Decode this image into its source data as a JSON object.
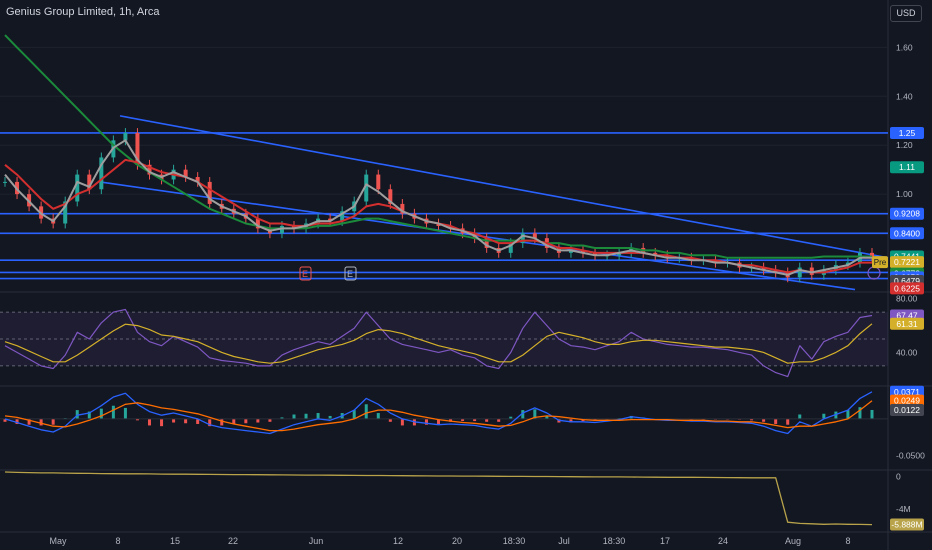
{
  "header": {
    "title": "Genius Group Limited, 1h, Arca",
    "currency": "USD"
  },
  "colors": {
    "background": "#131722",
    "grid": "#1e222d",
    "text": "#b2b5be",
    "channel": "#2962ff",
    "ma_slow": "#1b8a3b",
    "ma_mid": "#d32f2f",
    "ma_fast": "#9e9e9e",
    "up": "#26a69a",
    "down": "#ef5350",
    "rsi": "#7e57c2",
    "rsi_ma": "#d4b02a",
    "macd": "#2962ff",
    "signal": "#ff6d00",
    "volume_line": "#b8a34a"
  },
  "chart_data": [
    {
      "type": "line",
      "panel": "price",
      "yticks": [
        1.6,
        1.4,
        1.2,
        1.0
      ],
      "ylim": [
        0.6,
        1.72
      ],
      "xlabels": [
        "May",
        "8",
        "15",
        "22",
        "Jun",
        "12",
        "20",
        "18:30",
        "Jul",
        "18:30",
        "17",
        "24",
        "Aug",
        "8"
      ],
      "horizontal_levels": [
        1.25,
        0.92,
        0.84,
        0.73,
        0.68,
        0.655
      ],
      "price_tags": [
        {
          "label": "1.25",
          "value": 1.25,
          "color": "#2962ff"
        },
        {
          "label": "1.11",
          "value": 1.11,
          "color": "#089981"
        },
        {
          "label": "0.9208",
          "value": 0.92,
          "color": "#2962ff"
        },
        {
          "label": "0.8400",
          "value": 0.84,
          "color": "#2962ff"
        },
        {
          "label": "0.7441",
          "value": 0.745,
          "color": "#089981"
        },
        {
          "label": "0.7221",
          "value": 0.722,
          "color": "#d4b02a",
          "prefix": "Pre"
        },
        {
          "label": "0.6772",
          "value": 0.675,
          "color": "#1b8a3b"
        },
        {
          "label": "0.6652",
          "value": 0.66,
          "color": "#2962ff"
        },
        {
          "label": "0.6479",
          "value": 0.645,
          "color": "#434651"
        },
        {
          "label": "0.6225",
          "value": 0.615,
          "color": "#d32f2f"
        }
      ],
      "event_markers": [
        "E",
        "E"
      ],
      "series": [
        {
          "name": "price",
          "values": [
            1.05,
            1.0,
            0.95,
            0.9,
            0.88,
            0.97,
            1.08,
            1.02,
            1.15,
            1.22,
            1.25,
            1.12,
            1.08,
            1.06,
            1.1,
            1.07,
            1.05,
            0.96,
            0.94,
            0.92,
            0.9,
            0.86,
            0.84,
            0.87,
            0.86,
            0.88,
            0.9,
            0.89,
            0.93,
            0.97,
            1.08,
            1.02,
            0.96,
            0.92,
            0.9,
            0.88,
            0.87,
            0.86,
            0.84,
            0.82,
            0.78,
            0.76,
            0.8,
            0.84,
            0.82,
            0.78,
            0.76,
            0.77,
            0.76,
            0.75,
            0.75,
            0.76,
            0.78,
            0.76,
            0.75,
            0.74,
            0.74,
            0.73,
            0.73,
            0.72,
            0.72,
            0.7,
            0.7,
            0.69,
            0.68,
            0.66,
            0.7,
            0.67,
            0.69,
            0.71,
            0.72,
            0.76,
            0.745
          ]
        },
        {
          "name": "ma_slow",
          "values": [
            1.65,
            1.6,
            1.55,
            1.5,
            1.45,
            1.4,
            1.35,
            1.3,
            1.25,
            1.2,
            1.16,
            1.12,
            1.09,
            1.06,
            1.03,
            1.0,
            0.97,
            0.94,
            0.92,
            0.9,
            0.88,
            0.87,
            0.86,
            0.86,
            0.86,
            0.86,
            0.87,
            0.87,
            0.88,
            0.89,
            0.9,
            0.9,
            0.89,
            0.88,
            0.87,
            0.86,
            0.85,
            0.84,
            0.83,
            0.82,
            0.81,
            0.81,
            0.81,
            0.81,
            0.81,
            0.8,
            0.8,
            0.79,
            0.79,
            0.78,
            0.78,
            0.78,
            0.78,
            0.77,
            0.77,
            0.76,
            0.76,
            0.75,
            0.75,
            0.75,
            0.74,
            0.74,
            0.74,
            0.74,
            0.74,
            0.74,
            0.74,
            0.74,
            0.745,
            0.745,
            0.745,
            0.745,
            0.745
          ]
        },
        {
          "name": "ma_mid",
          "values": [
            1.12,
            1.08,
            1.03,
            0.98,
            0.94,
            0.96,
            1.0,
            1.02,
            1.06,
            1.1,
            1.14,
            1.13,
            1.11,
            1.09,
            1.08,
            1.07,
            1.05,
            1.02,
            0.99,
            0.96,
            0.93,
            0.9,
            0.88,
            0.88,
            0.87,
            0.87,
            0.88,
            0.88,
            0.89,
            0.91,
            0.95,
            0.96,
            0.95,
            0.93,
            0.91,
            0.89,
            0.88,
            0.87,
            0.85,
            0.84,
            0.82,
            0.8,
            0.8,
            0.81,
            0.81,
            0.8,
            0.78,
            0.78,
            0.77,
            0.76,
            0.76,
            0.76,
            0.76,
            0.76,
            0.75,
            0.75,
            0.74,
            0.74,
            0.73,
            0.73,
            0.72,
            0.71,
            0.71,
            0.7,
            0.69,
            0.68,
            0.69,
            0.68,
            0.68,
            0.69,
            0.7,
            0.72,
            0.72
          ]
        },
        {
          "name": "ma_fast",
          "values": [
            1.08,
            1.02,
            0.97,
            0.92,
            0.89,
            0.95,
            1.05,
            1.03,
            1.12,
            1.19,
            1.22,
            1.14,
            1.09,
            1.07,
            1.09,
            1.07,
            1.05,
            0.98,
            0.95,
            0.93,
            0.91,
            0.87,
            0.85,
            0.86,
            0.86,
            0.87,
            0.89,
            0.89,
            0.92,
            0.95,
            1.04,
            1.01,
            0.97,
            0.93,
            0.91,
            0.89,
            0.88,
            0.86,
            0.85,
            0.83,
            0.79,
            0.77,
            0.79,
            0.83,
            0.82,
            0.79,
            0.77,
            0.77,
            0.76,
            0.75,
            0.75,
            0.76,
            0.77,
            0.76,
            0.75,
            0.74,
            0.74,
            0.73,
            0.73,
            0.72,
            0.72,
            0.71,
            0.7,
            0.69,
            0.68,
            0.67,
            0.69,
            0.68,
            0.69,
            0.7,
            0.71,
            0.74,
            0.74
          ]
        }
      ]
    },
    {
      "type": "line",
      "panel": "rsi",
      "ylim": [
        15,
        85
      ],
      "yticks": [
        80.0,
        40.0
      ],
      "bands": [
        70,
        50,
        30
      ],
      "tags": [
        {
          "label": "67.47",
          "value": 67.47,
          "color": "#7e57c2"
        },
        {
          "label": "61.31",
          "value": 61.31,
          "color": "#d4b02a"
        }
      ],
      "series": [
        {
          "name": "rsi",
          "values": [
            45,
            40,
            35,
            30,
            28,
            38,
            55,
            50,
            62,
            70,
            72,
            55,
            48,
            45,
            52,
            48,
            44,
            36,
            34,
            33,
            32,
            30,
            30,
            38,
            42,
            45,
            48,
            46,
            52,
            58,
            70,
            60,
            50,
            46,
            44,
            42,
            40,
            42,
            38,
            36,
            30,
            28,
            40,
            58,
            70,
            60,
            50,
            45,
            44,
            42,
            45,
            48,
            55,
            50,
            48,
            46,
            45,
            44,
            44,
            43,
            42,
            40,
            38,
            30,
            25,
            22,
            45,
            35,
            48,
            52,
            55,
            66,
            67.47
          ]
        },
        {
          "name": "rsi_ma",
          "values": [
            48,
            45,
            41,
            37,
            33,
            33,
            38,
            44,
            50,
            56,
            61,
            60,
            57,
            53,
            52,
            50,
            48,
            44,
            40,
            37,
            35,
            33,
            32,
            33,
            36,
            39,
            42,
            44,
            46,
            49,
            54,
            57,
            56,
            54,
            51,
            48,
            45,
            43,
            41,
            39,
            36,
            33,
            33,
            38,
            45,
            52,
            55,
            53,
            51,
            48,
            46,
            46,
            48,
            49,
            49,
            48,
            47,
            46,
            45,
            44,
            44,
            43,
            42,
            40,
            36,
            32,
            33,
            33,
            36,
            40,
            45,
            54,
            61.31
          ]
        }
      ]
    },
    {
      "type": "line",
      "panel": "macd",
      "ylim": [
        -0.07,
        0.045
      ],
      "yticks": [
        -0.05
      ],
      "tags": [
        {
          "label": "0.0371",
          "value": 0.0371,
          "color": "#2962ff"
        },
        {
          "label": "0.0249",
          "value": 0.0249,
          "color": "#ff6d00"
        },
        {
          "label": "0.0122",
          "value": 0.0122,
          "color": "#434651"
        }
      ],
      "series": [
        {
          "name": "macd",
          "values": [
            0.0,
            -0.005,
            -0.01,
            -0.015,
            -0.018,
            -0.01,
            0.005,
            0.008,
            0.018,
            0.03,
            0.035,
            0.02,
            0.01,
            0.005,
            0.008,
            0.004,
            0.0,
            -0.008,
            -0.012,
            -0.014,
            -0.016,
            -0.018,
            -0.02,
            -0.014,
            -0.008,
            -0.004,
            0.0,
            -0.002,
            0.004,
            0.012,
            0.028,
            0.02,
            0.008,
            0.0,
            -0.004,
            -0.006,
            -0.008,
            -0.007,
            -0.008,
            -0.009,
            -0.012,
            -0.014,
            -0.006,
            0.008,
            0.015,
            0.008,
            -0.002,
            -0.004,
            -0.004,
            -0.005,
            -0.003,
            -0.001,
            0.003,
            0.001,
            -0.001,
            -0.002,
            -0.002,
            -0.003,
            -0.003,
            -0.004,
            -0.004,
            -0.005,
            -0.006,
            -0.01,
            -0.016,
            -0.02,
            -0.004,
            -0.01,
            0.0,
            0.006,
            0.012,
            0.028,
            0.0371
          ]
        },
        {
          "name": "signal",
          "values": [
            0.004,
            0.002,
            -0.002,
            -0.006,
            -0.01,
            -0.011,
            -0.007,
            -0.002,
            0.004,
            0.012,
            0.02,
            0.022,
            0.019,
            0.015,
            0.013,
            0.01,
            0.007,
            0.002,
            -0.003,
            -0.007,
            -0.01,
            -0.013,
            -0.016,
            -0.016,
            -0.014,
            -0.011,
            -0.008,
            -0.006,
            -0.004,
            0.0,
            0.008,
            0.012,
            0.012,
            0.009,
            0.005,
            0.002,
            -0.001,
            -0.003,
            -0.005,
            -0.006,
            -0.008,
            -0.01,
            -0.009,
            -0.004,
            0.002,
            0.004,
            0.003,
            0.001,
            -0.001,
            -0.002,
            -0.002,
            -0.002,
            -0.001,
            -0.001,
            -0.001,
            -0.001,
            -0.002,
            -0.002,
            -0.002,
            -0.003,
            -0.003,
            -0.004,
            -0.004,
            -0.006,
            -0.009,
            -0.012,
            -0.01,
            -0.01,
            -0.007,
            -0.004,
            0.0,
            0.012,
            0.0249
          ]
        }
      ]
    },
    {
      "type": "line",
      "panel": "volume",
      "ylim": [
        -6.8,
        0.8
      ],
      "yticks": [
        {
          "label": "0",
          "value": 0
        },
        {
          "label": "-4M",
          "value": -4
        }
      ],
      "tags": [
        {
          "label": "-5.888M",
          "value": -5.888,
          "color": "#b8a34a"
        }
      ],
      "series": [
        {
          "name": "cumulative",
          "values": [
            0.55,
            0.5,
            0.48,
            0.45,
            0.44,
            0.42,
            0.4,
            0.38,
            0.36,
            0.35,
            0.34,
            0.33,
            0.32,
            0.3,
            0.29,
            0.28,
            0.27,
            0.26,
            0.25,
            0.24,
            0.23,
            0.22,
            0.21,
            0.2,
            0.19,
            0.18,
            0.17,
            0.16,
            0.15,
            0.14,
            0.13,
            0.12,
            0.11,
            0.1,
            0.09,
            0.08,
            0.07,
            0.06,
            0.05,
            0.05,
            0.04,
            0.03,
            0.02,
            0.01,
            0.0,
            0.0,
            -0.01,
            -0.02,
            -0.03,
            -0.04,
            -0.05,
            -0.05,
            -0.06,
            -0.07,
            -0.08,
            -0.09,
            -0.1,
            -0.1,
            -0.11,
            -0.12,
            -0.13,
            -0.14,
            -0.15,
            -0.15,
            -0.16,
            -5.6,
            -5.75,
            -5.8,
            -5.85,
            -5.82,
            -5.86,
            -5.87,
            -5.888
          ]
        }
      ]
    }
  ]
}
